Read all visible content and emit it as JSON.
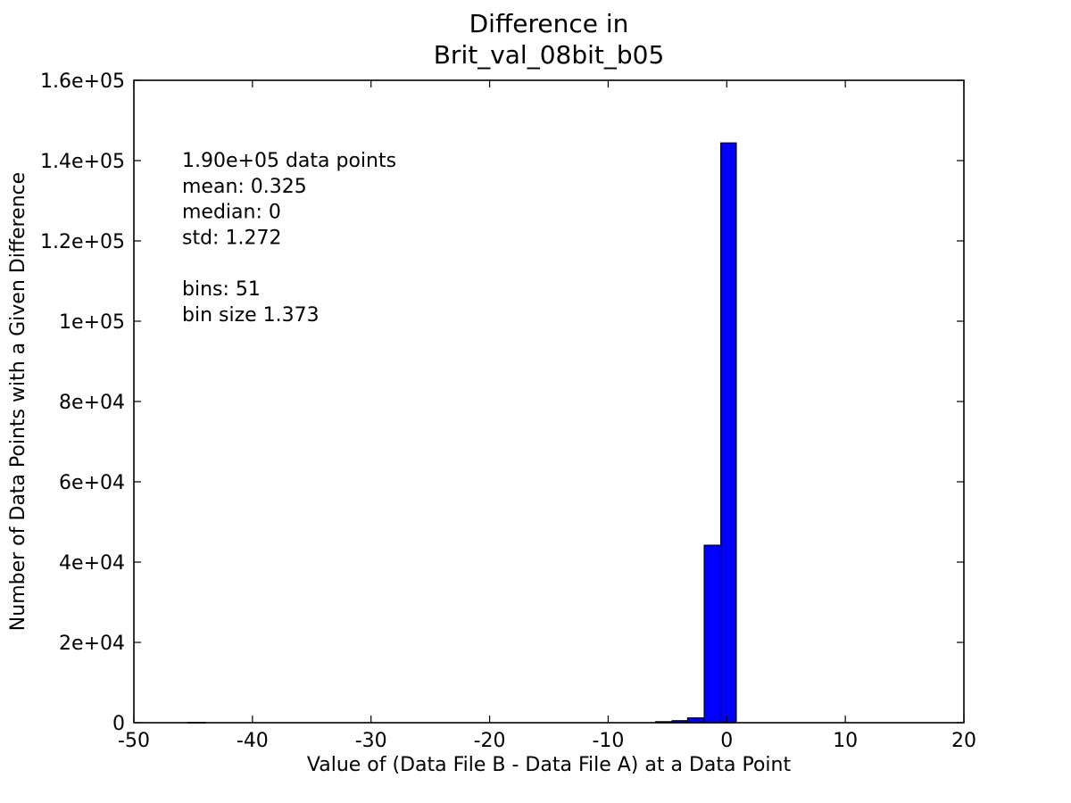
{
  "chart_data": {
    "type": "bar",
    "title": [
      "Difference in",
      "Brit_val_08bit_b05"
    ],
    "xlabel": "Value of (Data File B - Data File A) at a Data Point",
    "ylabel": "Number of Data Points with a Given Difference",
    "xlim": [
      -50,
      20
    ],
    "ylim": [
      0,
      160000
    ],
    "x_ticks": [
      -50,
      -40,
      -30,
      -20,
      -10,
      0,
      10,
      20
    ],
    "x_tick_labels": [
      "-50",
      "-40",
      "-30",
      "-20",
      "-10",
      "0",
      "10",
      "20"
    ],
    "y_ticks": [
      0,
      20000,
      40000,
      60000,
      80000,
      100000,
      120000,
      140000,
      160000
    ],
    "y_tick_labels": [
      "0",
      "2e+04",
      "4e+04",
      "6e+04",
      "8e+04",
      "1e+05",
      "1.2e+05",
      "1.4e+05",
      "1.6e+05"
    ],
    "grid": false,
    "bar_color": "#0000ff",
    "bars": [
      {
        "x0": -45.4,
        "x1": -44.0,
        "value": 60
      },
      {
        "x0": -6.0,
        "x1": -4.6,
        "value": 250
      },
      {
        "x0": -4.6,
        "x1": -3.3,
        "value": 500
      },
      {
        "x0": -3.3,
        "x1": -1.9,
        "value": 1200
      },
      {
        "x0": -1.9,
        "x1": -0.5,
        "value": 44200
      },
      {
        "x0": -0.5,
        "x1": 0.8,
        "value": 144400
      }
    ],
    "stats": [
      "1.90e+05 data points",
      "mean: 0.325",
      "median: 0",
      "std: 1.272",
      "",
      "bins: 51",
      "bin size 1.373"
    ]
  }
}
